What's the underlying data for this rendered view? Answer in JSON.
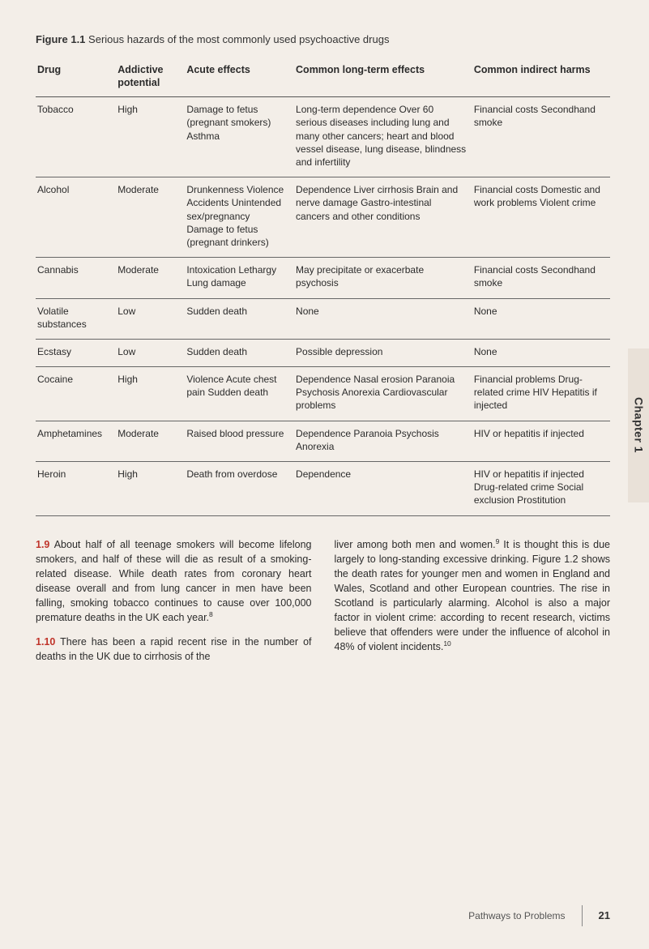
{
  "figure": {
    "number": "Figure 1.1",
    "title": "Serious hazards of the most commonly used psychoactive drugs"
  },
  "table": {
    "headers": {
      "drug": "Drug",
      "addictive": "Addictive potential",
      "acute": "Acute effects",
      "longterm": "Common long-term effects",
      "indirect": "Common indirect harms"
    },
    "rows": [
      {
        "drug": "Tobacco",
        "addictive": "High",
        "acute": "Damage to fetus (pregnant smokers) Asthma",
        "longterm": "Long-term dependence Over 60 serious diseases including lung and many other cancers; heart and blood vessel disease, lung disease, blindness and infertility",
        "indirect": "Financial costs Secondhand smoke"
      },
      {
        "drug": "Alcohol",
        "addictive": "Moderate",
        "acute": "Drunkenness Violence Accidents Unintended sex/pregnancy Damage to fetus (pregnant drinkers)",
        "longterm": "Dependence Liver cirrhosis Brain and nerve damage Gastro-intestinal cancers and other conditions",
        "indirect": "Financial costs Domestic and work problems Violent crime"
      },
      {
        "drug": "Cannabis",
        "addictive": "Moderate",
        "acute": "Intoxication Lethargy Lung damage",
        "longterm": "May precipitate or exacerbate psychosis",
        "indirect": "Financial costs Secondhand smoke"
      },
      {
        "drug": "Volatile substances",
        "addictive": "Low",
        "acute": "Sudden death",
        "longterm": "None",
        "indirect": "None"
      },
      {
        "drug": "Ecstasy",
        "addictive": "Low",
        "acute": "Sudden death",
        "longterm": "Possible depression",
        "indirect": "None"
      },
      {
        "drug": "Cocaine",
        "addictive": "High",
        "acute": "Violence Acute chest pain Sudden death",
        "longterm": "Dependence Nasal erosion Paranoia Psychosis Anorexia Cardiovascular problems",
        "indirect": "Financial problems Drug-related crime HIV Hepatitis if injected"
      },
      {
        "drug": "Amphetamines",
        "addictive": "Moderate",
        "acute": "Raised blood pressure",
        "longterm": "Dependence Paranoia Psychosis Anorexia",
        "indirect": "HIV or hepatitis if injected"
      },
      {
        "drug": "Heroin",
        "addictive": "High",
        "acute": "Death from overdose",
        "longterm": "Dependence",
        "indirect": "HIV or hepatitis if injected Drug-related crime Social exclusion Prostitution"
      }
    ]
  },
  "body": {
    "p1_lead": "1.9",
    "p1_text": " About half of all teenage smokers will become lifelong smokers, and half of these will die as result of a smoking-related disease. While death rates from coronary heart disease overall and from lung cancer in men have been falling, smoking tobacco continues to cause over 100,000 premature deaths in the UK each year.",
    "p1_sup": "8",
    "p2_lead": "1.10",
    "p2_text": " There has been a rapid recent rise in the number of deaths in the UK due to cirrhosis of the",
    "p3_text_a": "liver among both men and women.",
    "p3_sup": "9",
    "p3_text_b": " It is thought this is due largely to long-standing excessive drinking. Figure 1.2 shows the death rates for younger men and women in England and Wales, Scotland and other European countries. The rise in Scotland is particularly alarming. Alcohol is also a major factor in violent crime: according to recent research, victims believe that offenders were under the influence of alcohol in 48% of violent incidents.",
    "p3_sup2": "10"
  },
  "chapter_tab": "Chapter 1",
  "footer": {
    "title": "Pathways to Problems",
    "page": "21"
  },
  "colors": {
    "page_bg": "#f3eee8",
    "text": "#2b2b2b",
    "rule": "#666666",
    "lead": "#c0342a",
    "tab_bg": "#e9e1d8"
  }
}
